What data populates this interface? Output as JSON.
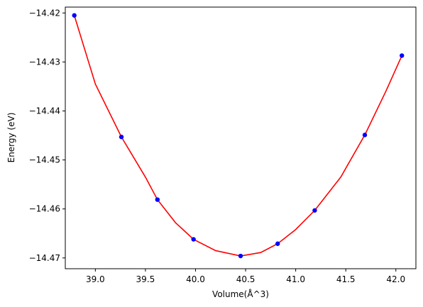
{
  "chart_data": {
    "type": "scatter",
    "title": "",
    "xlabel": "Volume(Å^3)",
    "ylabel": "Energy (eV)",
    "xlim": [
      38.7,
      42.2
    ],
    "ylim": [
      -14.4722,
      -14.4188
    ],
    "xticks": [
      39.0,
      39.5,
      40.0,
      40.5,
      41.0,
      41.5,
      42.0
    ],
    "xtick_labels": [
      "39.0",
      "39.5",
      "40.0",
      "40.5",
      "41.0",
      "41.5",
      "42.0"
    ],
    "yticks": [
      -14.42,
      -14.43,
      -14.44,
      -14.45,
      -14.46,
      -14.47
    ],
    "ytick_labels": [
      "−14.42",
      "−14.43",
      "−14.44",
      "−14.45",
      "−14.46",
      "−14.47"
    ],
    "grid": false,
    "legend": "none",
    "series": [
      {
        "kind": "scatter",
        "color": "#0000ff",
        "x": [
          38.79,
          39.26,
          39.62,
          39.98,
          40.45,
          40.82,
          41.19,
          41.69,
          42.06
        ],
        "y": [
          -14.4205,
          -14.4453,
          -14.4581,
          -14.4662,
          -14.4696,
          -14.4671,
          -14.4603,
          -14.4449,
          -14.4287
        ]
      },
      {
        "kind": "line",
        "color": "#ff0000",
        "x": [
          38.79,
          39.0,
          39.26,
          39.5,
          39.62,
          39.8,
          39.98,
          40.2,
          40.45,
          40.65,
          40.82,
          41.0,
          41.19,
          41.45,
          41.69,
          41.9,
          42.06
        ],
        "y": [
          -14.4205,
          -14.4345,
          -14.4453,
          -14.4535,
          -14.4581,
          -14.4628,
          -14.4662,
          -14.4685,
          -14.4696,
          -14.4689,
          -14.4671,
          -14.4642,
          -14.4603,
          -14.4535,
          -14.4449,
          -14.436,
          -14.4287
        ]
      }
    ]
  }
}
